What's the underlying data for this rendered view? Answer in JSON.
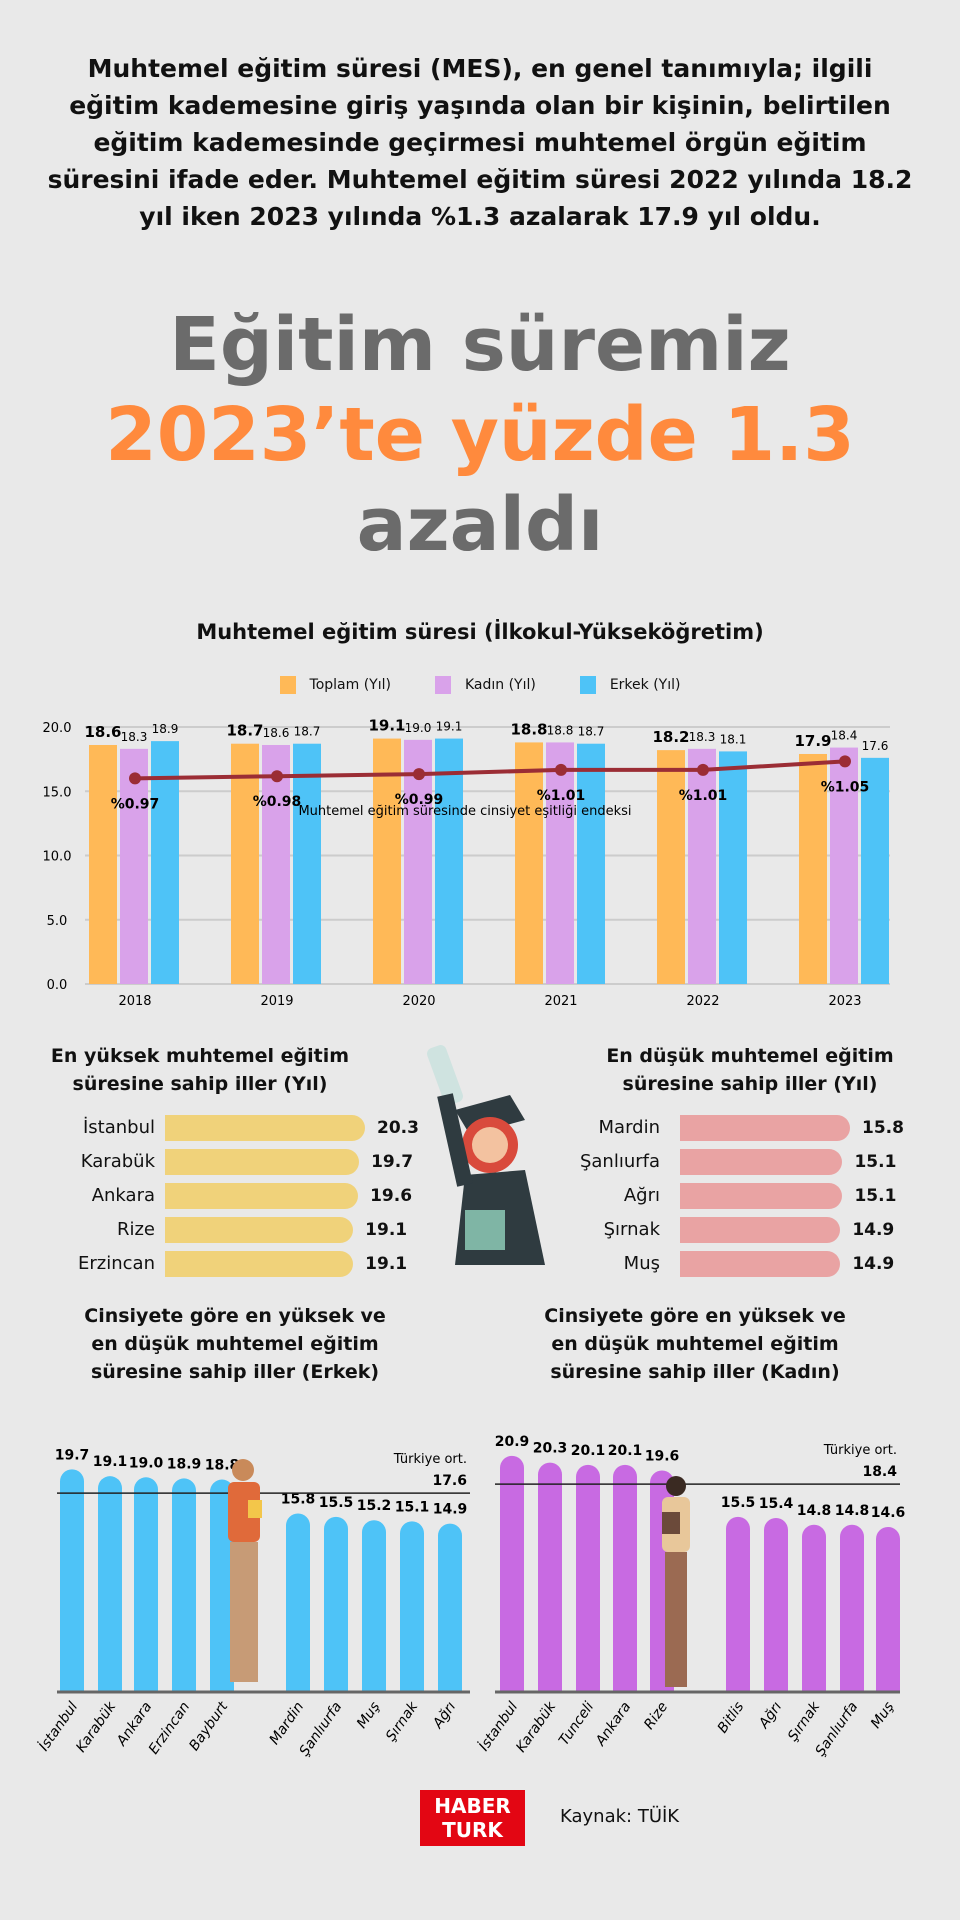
{
  "intro": "Muhtemel eğitim süresi (MES), en genel tanımıyla; ilgili eğitim kademesine giriş yaşında olan bir kişinin, belirtilen eğitim kademesinde geçirmesi muhtemel örgün eğitim süresini ifade eder. Muhtemel eğitim süresi 2022 yılında 18.2 yıl iken 2023 yılında %1.3 azalarak 17.9 yıl oldu.",
  "headline": {
    "line1": "Eğitim süremiz",
    "line2": "2023’te yüzde 1.3",
    "line3": "azaldı"
  },
  "colors": {
    "toplam": "#ffb957",
    "kadin": "#d9a2ea",
    "erkek": "#4ec3f7",
    "line": "#9b2d35",
    "top_bar": "#f0d27a",
    "bottom_bar": "#e9a3a3",
    "erkek_bar": "#4ec3f7",
    "kadin_bar": "#c86ae2",
    "orange": "#ff8a3d",
    "brand": "#e30613"
  },
  "chart_data": [
    {
      "type": "bar",
      "title": "Muhtemel eğitim süresi (İlkokul-Yükseköğretim)",
      "categories": [
        "2018",
        "2019",
        "2020",
        "2021",
        "2022",
        "2023"
      ],
      "ylim": [
        0,
        20
      ],
      "yticks": [
        "0.0",
        "5.0",
        "10.0",
        "15.0",
        "20.0"
      ],
      "grid": true,
      "legend": "top",
      "series": [
        {
          "name": "Toplam (Yıl)",
          "values": [
            18.6,
            18.7,
            19.1,
            18.8,
            18.2,
            17.9
          ]
        },
        {
          "name": "Kadın (Yıl)",
          "values": [
            18.3,
            18.6,
            19.0,
            18.8,
            18.3,
            18.4
          ]
        },
        {
          "name": "Erkek (Yıl)",
          "values": [
            18.9,
            18.7,
            19.1,
            18.7,
            18.1,
            17.6
          ]
        }
      ],
      "line": {
        "name": "Muhtemel eğitim süresinde cinsiyet eşitliği endeksi",
        "values": [
          0.97,
          0.98,
          0.99,
          1.01,
          1.01,
          1.05
        ],
        "labels": [
          "%0.97",
          "%0.98",
          "%0.99",
          "%1.01",
          "%1.01",
          "%1.05"
        ]
      }
    },
    {
      "type": "bar",
      "title": "En yüksek muhtemel eğitim süresine sahip iller (Yıl)",
      "categories": [
        "İstanbul",
        "Karabük",
        "Ankara",
        "Rize",
        "Erzincan"
      ],
      "values": [
        20.3,
        19.7,
        19.6,
        19.1,
        19.1
      ]
    },
    {
      "type": "bar",
      "title": "En düşük muhtemel eğitim süresine sahip iller (Yıl)",
      "categories": [
        "Mardin",
        "Şanlıurfa",
        "Ağrı",
        "Şırnak",
        "Muş"
      ],
      "values": [
        15.8,
        15.1,
        15.1,
        14.9,
        14.9
      ]
    },
    {
      "type": "bar",
      "title": "Cinsiyete göre en yüksek ve en düşük muhtemel eğitim süresine sahip iller (Erkek)",
      "categories": [
        "İstanbul",
        "Karabük",
        "Ankara",
        "Erzincan",
        "Bayburt",
        "Mardin",
        "Şanlıurfa",
        "Muş",
        "Şırnak",
        "Ağrı"
      ],
      "values": [
        19.7,
        19.1,
        19.0,
        18.9,
        18.8,
        15.8,
        15.5,
        15.2,
        15.1,
        14.9
      ],
      "reference": {
        "label": "Türkiye ort.",
        "value": "17.6"
      }
    },
    {
      "type": "bar",
      "title": "Cinsiyete göre en yüksek ve en düşük muhtemel eğitim süresine sahip iller (Kadın)",
      "categories": [
        "İstanbul",
        "Karabük",
        "Tunceli",
        "Ankara",
        "Rize",
        "Bitlis",
        "Ağrı",
        "Şırnak",
        "Şanlıurfa",
        "Muş"
      ],
      "values": [
        20.9,
        20.3,
        20.1,
        20.1,
        19.6,
        15.5,
        15.4,
        14.8,
        14.8,
        14.6
      ],
      "reference": {
        "label": "Türkiye ort.",
        "value": "18.4"
      }
    }
  ],
  "titles": {
    "top_left": "En yüksek muhtemel eğitim süresine sahip iller (Yıl)",
    "top_right": "En düşük muhtemel eğitim süresine sahip iller (Yıl)",
    "erkek": "Cinsiyete göre en yüksek ve en düşük muhtemel eğitim süresine sahip iller (Erkek)",
    "kadin": "Cinsiyete göre en yüksek ve en düşük muhtemel eğitim süresine sahip iller (Kadın)"
  },
  "footer": {
    "logo_top": "HABER",
    "logo_bottom": "TURK",
    "source": "Kaynak: TÜİK"
  }
}
